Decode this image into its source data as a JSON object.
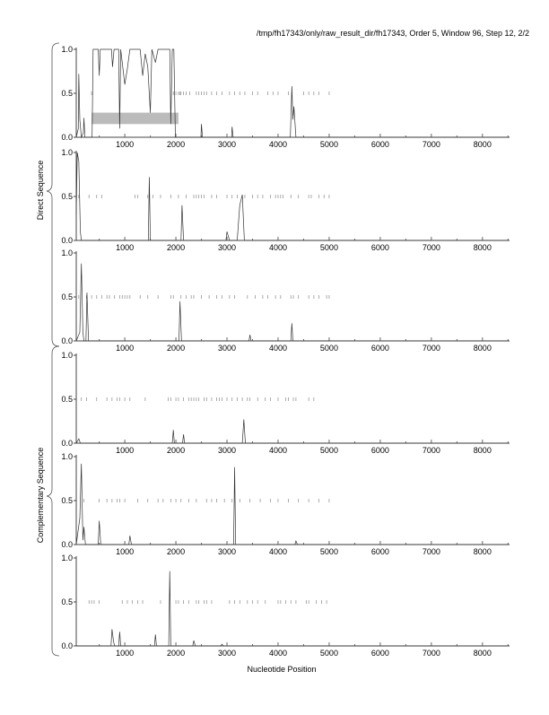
{
  "title": "/tmp/fh17343/only/raw_result_dir/fh17343, Order 5, Window 96, Step 12, 2/2",
  "chart_data": [
    {
      "type": "line",
      "group": "Direct Sequence",
      "xlim": [
        50,
        8530
      ],
      "ylim": [
        0,
        1
      ],
      "points": [
        [
          50,
          0
        ],
        [
          90,
          0.1
        ],
        [
          100,
          0.72
        ],
        [
          120,
          0.2
        ],
        [
          150,
          0
        ],
        [
          190,
          0.05
        ],
        [
          200,
          0.22
        ],
        [
          220,
          0
        ],
        [
          360,
          0
        ],
        [
          380,
          1
        ],
        [
          480,
          1
        ],
        [
          500,
          0.7
        ],
        [
          520,
          1
        ],
        [
          740,
          1
        ],
        [
          760,
          0.8
        ],
        [
          790,
          1
        ],
        [
          880,
          1
        ],
        [
          900,
          0.1
        ],
        [
          920,
          1
        ],
        [
          1000,
          0.6
        ],
        [
          1050,
          0.78
        ],
        [
          1100,
          1
        ],
        [
          1300,
          1
        ],
        [
          1350,
          0.7
        ],
        [
          1400,
          0.95
        ],
        [
          1450,
          0.8
        ],
        [
          1500,
          0.28
        ],
        [
          1530,
          1
        ],
        [
          1600,
          0.85
        ],
        [
          1650,
          1
        ],
        [
          1880,
          1
        ],
        [
          1900,
          0.15
        ],
        [
          1930,
          1
        ],
        [
          1960,
          1
        ],
        [
          1990,
          0
        ],
        [
          2490,
          0
        ],
        [
          2500,
          0.15
        ],
        [
          2520,
          0
        ],
        [
          3090,
          0
        ],
        [
          3100,
          0.12
        ],
        [
          3120,
          0
        ],
        [
          4240,
          0
        ],
        [
          4270,
          0.58
        ],
        [
          4290,
          0.2
        ],
        [
          4310,
          0.35
        ],
        [
          4350,
          0
        ],
        [
          8530,
          0
        ]
      ],
      "stop_ticks": [
        100,
        350,
        1950,
        2000,
        2050,
        2080,
        2100,
        2150,
        2200,
        2270,
        2400,
        2450,
        2500,
        2550,
        2600,
        2700,
        2800,
        2900,
        3050,
        3150,
        3250,
        3350,
        3500,
        3600,
        3800,
        3900,
        4000,
        4200,
        4500,
        4600,
        4700,
        4800,
        5000
      ],
      "gene_region": [
        350,
        2050
      ]
    },
    {
      "type": "line",
      "group": "Direct Sequence",
      "xlim": [
        50,
        8530
      ],
      "ylim": [
        0,
        1
      ],
      "points": [
        [
          50,
          0.3
        ],
        [
          70,
          1
        ],
        [
          100,
          0.9
        ],
        [
          130,
          0.1
        ],
        [
          150,
          0
        ],
        [
          1460,
          0
        ],
        [
          1480,
          0.72
        ],
        [
          1500,
          0
        ],
        [
          2100,
          0
        ],
        [
          2120,
          0.4
        ],
        [
          2150,
          0
        ],
        [
          2980,
          0
        ],
        [
          3000,
          0.1
        ],
        [
          3050,
          0
        ],
        [
          3200,
          0
        ],
        [
          3250,
          0.4
        ],
        [
          3300,
          0.52
        ],
        [
          3340,
          0
        ],
        [
          8530,
          0
        ]
      ],
      "stop_ticks": [
        100,
        300,
        450,
        550,
        1200,
        1250,
        1450,
        1550,
        1700,
        1900,
        2050,
        2200,
        2350,
        2400,
        2450,
        2500,
        2550,
        2700,
        2800,
        3000,
        3100,
        3200,
        3350,
        3500,
        3600,
        3700,
        3850,
        3950,
        4000,
        4050,
        4100,
        4250,
        4400,
        4600,
        4650,
        4800,
        4900,
        5000
      ],
      "gene_region": null
    },
    {
      "type": "line",
      "group": "Direct Sequence",
      "xlim": [
        50,
        8530
      ],
      "ylim": [
        0,
        1
      ],
      "points": [
        [
          50,
          0
        ],
        [
          120,
          0.1
        ],
        [
          150,
          0.88
        ],
        [
          180,
          0.1
        ],
        [
          200,
          0
        ],
        [
          240,
          0
        ],
        [
          260,
          0.55
        ],
        [
          290,
          0
        ],
        [
          2060,
          0
        ],
        [
          2080,
          0.45
        ],
        [
          2110,
          0
        ],
        [
          3430,
          0
        ],
        [
          3450,
          0.07
        ],
        [
          3470,
          0
        ],
        [
          4250,
          0
        ],
        [
          4270,
          0.2
        ],
        [
          4290,
          0
        ],
        [
          8530,
          0
        ]
      ],
      "stop_ticks": [
        100,
        250,
        350,
        450,
        550,
        650,
        700,
        800,
        900,
        950,
        1000,
        1050,
        1100,
        1300,
        1450,
        1650,
        1900,
        1950,
        2100,
        2200,
        2300,
        2350,
        2500,
        2650,
        2800,
        2900,
        3050,
        3150,
        3400,
        3550,
        3700,
        3800,
        3950,
        4050,
        4250,
        4300,
        4400,
        4600,
        4700,
        4800,
        4950,
        5000
      ],
      "gene_region": null
    },
    {
      "type": "line",
      "group": "Complementary Sequence",
      "xlim": [
        50,
        8530
      ],
      "ylim": [
        0,
        1
      ],
      "points": [
        [
          50,
          0
        ],
        [
          100,
          0.05
        ],
        [
          130,
          0
        ],
        [
          1930,
          0
        ],
        [
          1950,
          0.15
        ],
        [
          1970,
          0
        ],
        [
          2130,
          0
        ],
        [
          2150,
          0.1
        ],
        [
          2170,
          0
        ],
        [
          3300,
          0
        ],
        [
          3330,
          0.27
        ],
        [
          3360,
          0
        ],
        [
          8530,
          0
        ]
      ],
      "stop_ticks": [
        150,
        250,
        450,
        650,
        750,
        850,
        900,
        1000,
        1100,
        1400,
        1850,
        1900,
        2000,
        2050,
        2150,
        2250,
        2300,
        2350,
        2400,
        2450,
        2550,
        2600,
        2700,
        2800,
        2850,
        2900,
        3000,
        3100,
        3200,
        3300,
        3400,
        3450,
        3600,
        3750,
        3850,
        4000,
        4150,
        4200,
        4300,
        4350,
        4600,
        4700
      ]
    },
    {
      "type": "line",
      "group": "Complementary Sequence",
      "xlim": [
        50,
        8530
      ],
      "ylim": [
        0,
        1
      ],
      "points": [
        [
          50,
          0
        ],
        [
          120,
          0.3
        ],
        [
          150,
          0.92
        ],
        [
          180,
          0.05
        ],
        [
          200,
          0.2
        ],
        [
          230,
          0
        ],
        [
          480,
          0
        ],
        [
          500,
          0.27
        ],
        [
          530,
          0
        ],
        [
          1080,
          0
        ],
        [
          1100,
          0.1
        ],
        [
          1130,
          0
        ],
        [
          3130,
          0
        ],
        [
          3150,
          0.88
        ],
        [
          3170,
          0
        ],
        [
          4330,
          0
        ],
        [
          4350,
          0.04
        ],
        [
          4380,
          0
        ],
        [
          8530,
          0
        ]
      ],
      "stop_ticks": [
        200,
        500,
        650,
        750,
        850,
        900,
        1000,
        1250,
        1450,
        1650,
        1750,
        1900,
        2000,
        2100,
        2250,
        2400,
        2600,
        2700,
        2800,
        2950,
        3100,
        3250,
        3450,
        3650,
        3850,
        4000,
        4200,
        4400,
        4600,
        4800,
        5000
      ]
    },
    {
      "type": "line",
      "group": "Complementary Sequence",
      "xlim": [
        50,
        8530
      ],
      "ylim": [
        0,
        1
      ],
      "points": [
        [
          50,
          0
        ],
        [
          730,
          0
        ],
        [
          750,
          0.19
        ],
        [
          780,
          0.05
        ],
        [
          800,
          0
        ],
        [
          880,
          0
        ],
        [
          900,
          0.16
        ],
        [
          920,
          0
        ],
        [
          1580,
          0
        ],
        [
          1600,
          0.13
        ],
        [
          1620,
          0
        ],
        [
          1860,
          0
        ],
        [
          1880,
          0.85
        ],
        [
          1900,
          0
        ],
        [
          2330,
          0
        ],
        [
          2350,
          0.06
        ],
        [
          2380,
          0
        ],
        [
          2880,
          0
        ],
        [
          2900,
          0.02
        ],
        [
          2930,
          0
        ],
        [
          8530,
          0
        ]
      ],
      "stop_ticks": [
        300,
        350,
        400,
        500,
        950,
        1050,
        1150,
        1250,
        1350,
        1700,
        2000,
        2050,
        2150,
        2250,
        2400,
        2450,
        2550,
        2600,
        2700,
        3050,
        3150,
        3250,
        3400,
        3500,
        3600,
        3750,
        4000,
        4050,
        4150,
        4250,
        4350,
        4550,
        4600,
        4750,
        4850,
        4950
      ]
    }
  ],
  "x_ticks": [
    1000,
    2000,
    3000,
    4000,
    5000,
    6000,
    7000,
    8000
  ],
  "y_ticks": [
    "0.0",
    "0.5",
    "1.0"
  ],
  "xlabel": "Nucleotide Position",
  "group_labels": {
    "direct": "Direct Sequence",
    "complementary": "Complementary Sequence"
  },
  "colors": {
    "line": "#333333",
    "ticks": "#888888",
    "gene_region": "#bbbbbb"
  }
}
